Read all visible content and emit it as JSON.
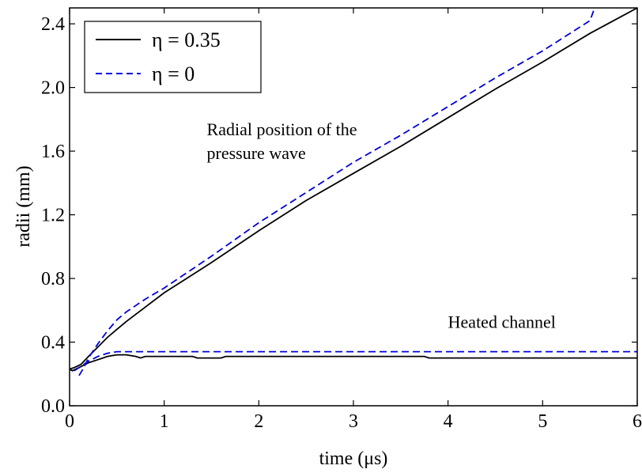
{
  "chart_data": {
    "type": "line",
    "xlabel": "time (μs)",
    "ylabel": "radii (mm)",
    "xlim": [
      0,
      6
    ],
    "ylim": [
      0,
      2.5
    ],
    "xticks": [
      0,
      1,
      2,
      3,
      4,
      5,
      6
    ],
    "xtick_labels": [
      "0",
      "1",
      "2",
      "3",
      "4",
      "5",
      "6"
    ],
    "yticks": [
      0,
      0.4,
      0.8,
      1.2,
      1.6,
      2.0,
      2.4
    ],
    "ytick_labels": [
      "0.0",
      "0.4",
      "0.8",
      "1.2",
      "1.6",
      "2.0",
      "2.4"
    ],
    "grid": false,
    "legend_position": "top-left",
    "series": [
      {
        "name": "η = 0.35",
        "color": "#000000",
        "style": "solid",
        "lines": [
          {
            "x": [
              0,
              0.05,
              0.12,
              0.2,
              0.3,
              0.4,
              0.5,
              0.6,
              0.8,
              1.0,
              1.5,
              2.0,
              2.5,
              3.0,
              3.5,
              4.0,
              4.5,
              5.0,
              5.5,
              6.0
            ],
            "y": [
              0.23,
              0.24,
              0.26,
              0.31,
              0.37,
              0.43,
              0.48,
              0.53,
              0.62,
              0.71,
              0.9,
              1.1,
              1.29,
              1.46,
              1.63,
              1.81,
              1.99,
              2.16,
              2.34,
              2.5
            ]
          },
          {
            "x": [
              0,
              0.03,
              0.1,
              0.2,
              0.3,
              0.4,
              0.5,
              0.6,
              0.7,
              0.75,
              0.8,
              1.0,
              1.3,
              1.35,
              1.6,
              1.65,
              2.0,
              3.0,
              3.75,
              3.8,
              4.5,
              5.0,
              6.0
            ],
            "y": [
              0.23,
              0.22,
              0.24,
              0.27,
              0.29,
              0.31,
              0.32,
              0.32,
              0.31,
              0.3,
              0.31,
              0.31,
              0.31,
              0.3,
              0.3,
              0.31,
              0.31,
              0.31,
              0.31,
              0.3,
              0.3,
              0.3,
              0.3
            ]
          }
        ]
      },
      {
        "name": "η = 0",
        "color": "#0000dd",
        "style": "dashed",
        "lines": [
          {
            "x": [
              0.1,
              0.15,
              0.2,
              0.3,
              0.4,
              0.5,
              0.6,
              0.8,
              1.0,
              1.5,
              2.0,
              2.5,
              3.0,
              3.5,
              4.0,
              4.5,
              5.0,
              5.5,
              5.55
            ],
            "y": [
              0.19,
              0.24,
              0.3,
              0.39,
              0.47,
              0.54,
              0.59,
              0.67,
              0.74,
              0.94,
              1.15,
              1.34,
              1.53,
              1.7,
              1.88,
              2.06,
              2.23,
              2.42,
              2.5
            ]
          },
          {
            "x": [
              0.05,
              0.1,
              0.2,
              0.3,
              0.4,
              0.5,
              0.6,
              1.0,
              2.0,
              3.0,
              4.0,
              5.0,
              6.0
            ],
            "y": [
              0.22,
              0.24,
              0.28,
              0.31,
              0.33,
              0.34,
              0.34,
              0.34,
              0.34,
              0.34,
              0.34,
              0.34,
              0.34
            ]
          }
        ]
      }
    ],
    "annotations": [
      {
        "lines": [
          "Radial position of the",
          "pressure wave"
        ],
        "x": 1.45,
        "y": 1.7
      },
      {
        "lines": [
          "Heated channel"
        ],
        "x": 4.0,
        "y": 0.49
      }
    ]
  }
}
